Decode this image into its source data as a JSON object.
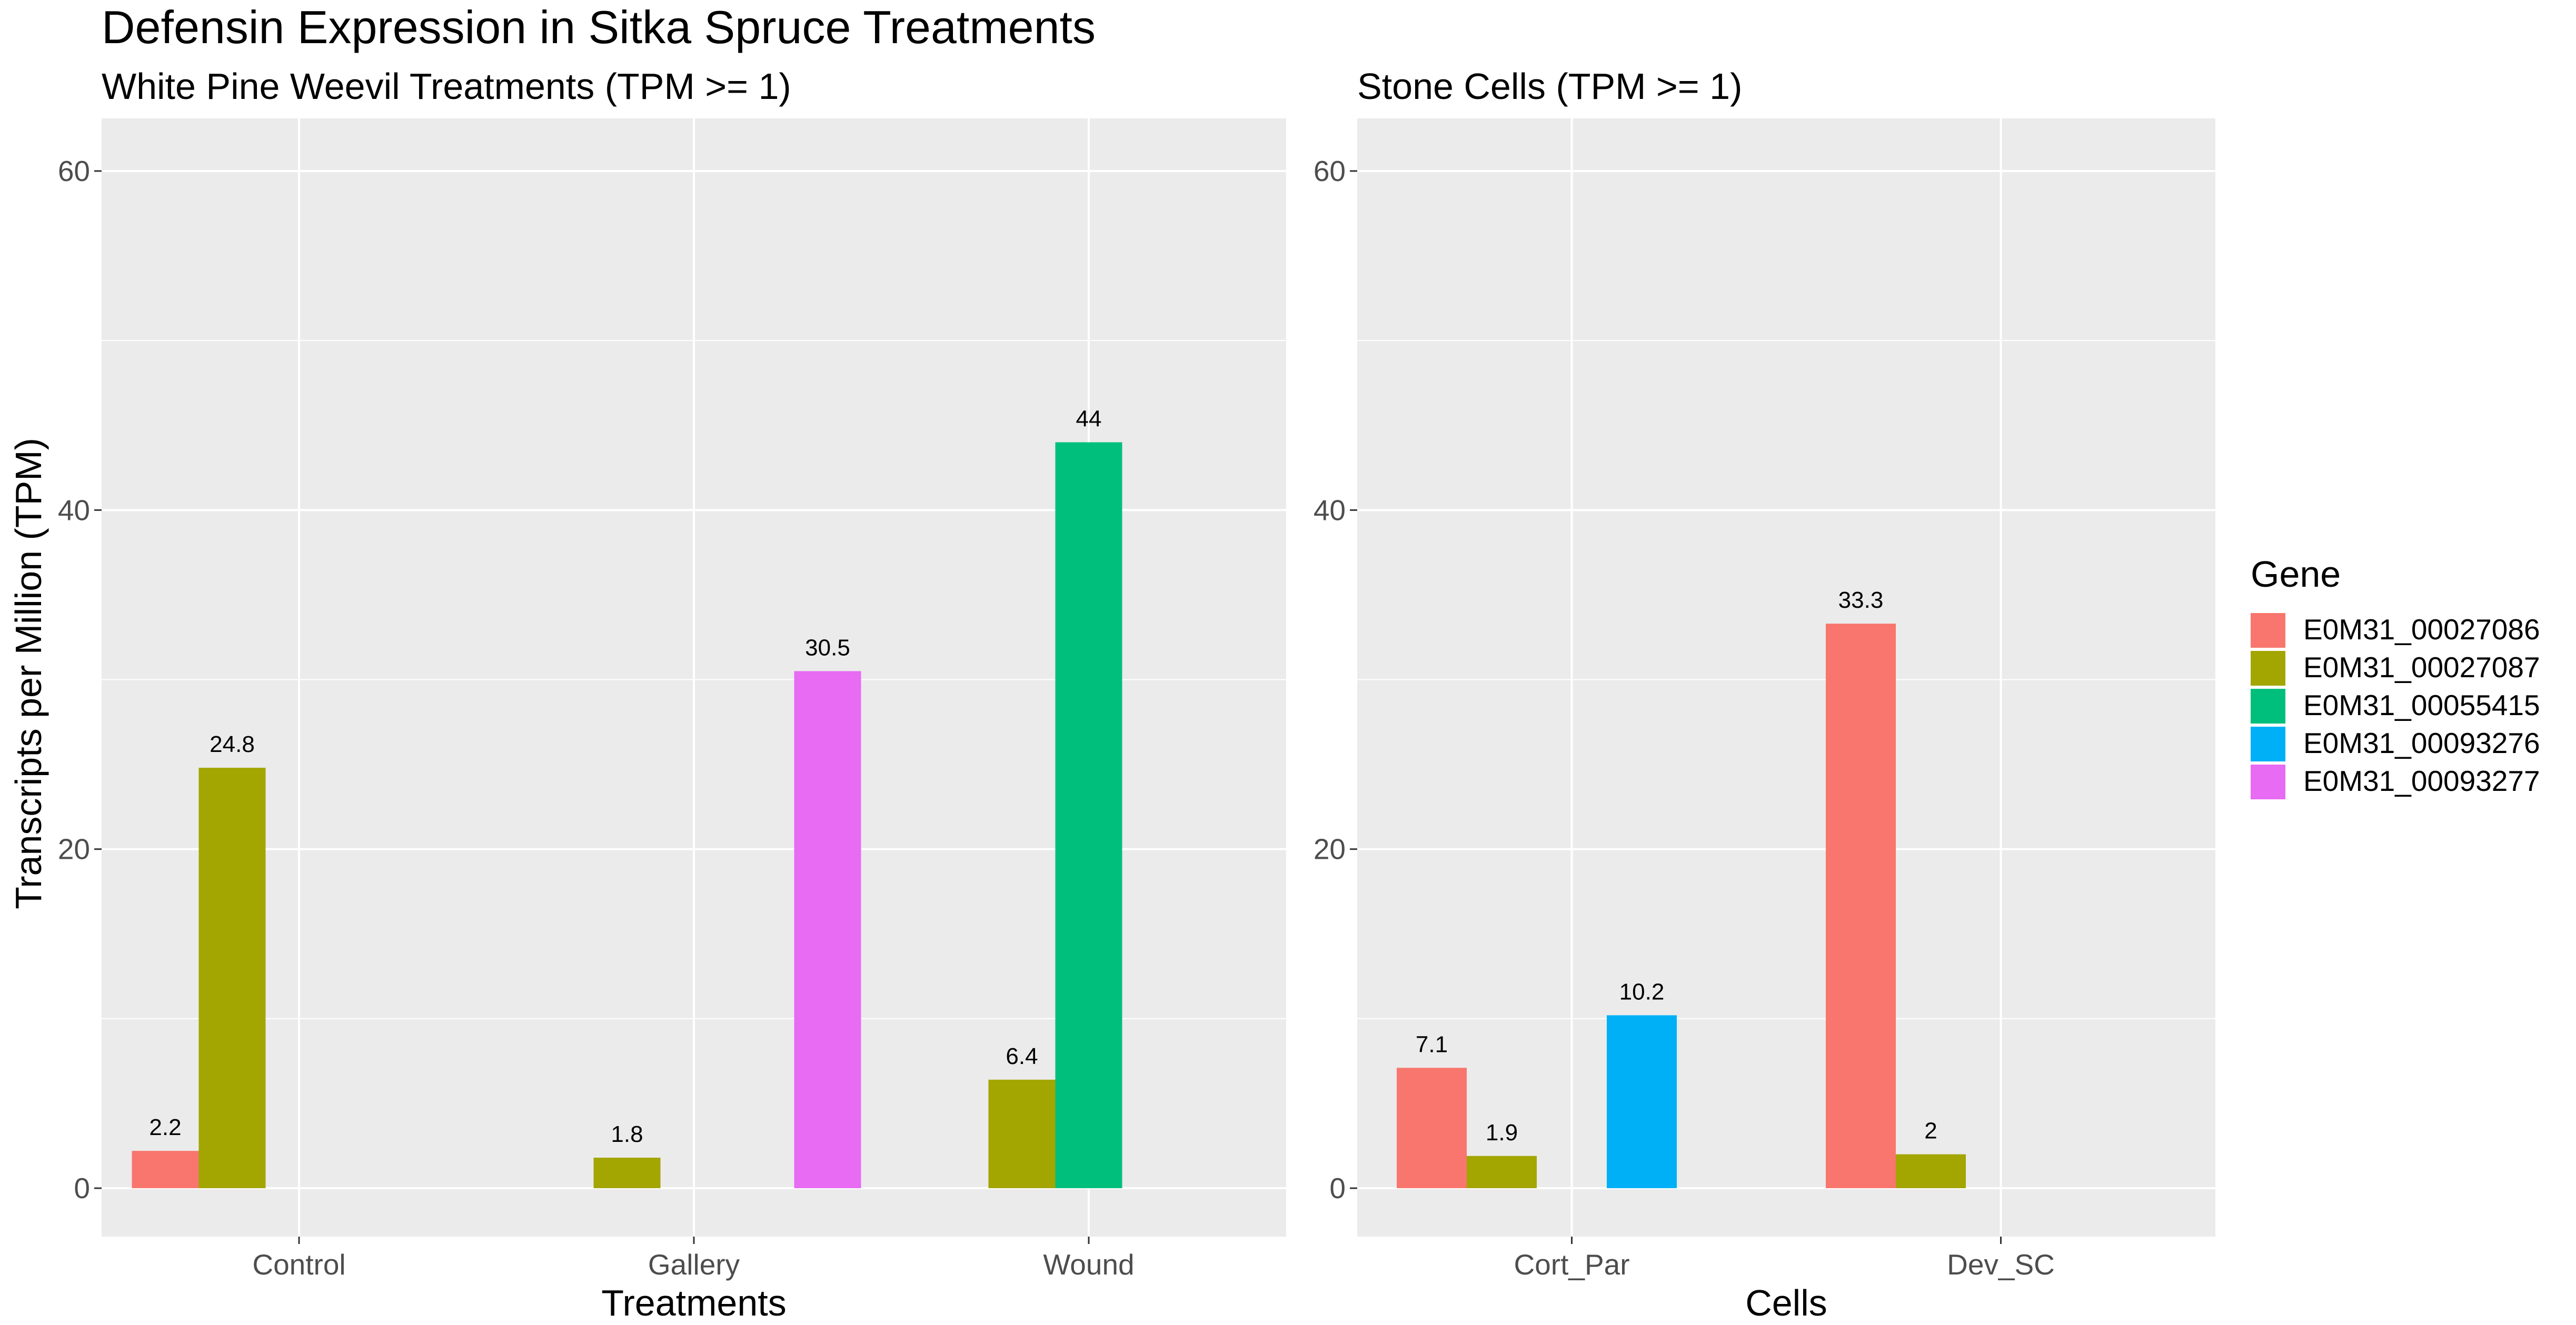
{
  "title": "Defensin Expression in Sitka Spruce Treatments",
  "ylabel": "Transcripts per Million (TPM)",
  "legend": {
    "title": "Gene",
    "placement": "right",
    "items": [
      {
        "name": "E0M31_00027086",
        "color": "#F8766D"
      },
      {
        "name": "E0M31_00027087",
        "color": "#A3A500"
      },
      {
        "name": "E0M31_00055415",
        "color": "#00BF7D"
      },
      {
        "name": "E0M31_00093276",
        "color": "#00B0F6"
      },
      {
        "name": "E0M31_00093277",
        "color": "#E76BF3"
      }
    ]
  },
  "chart_data": [
    {
      "type": "bar",
      "subtitle": "White Pine Weevil Treatments (TPM >= 1)",
      "xlabel": "Treatments",
      "ylabel": "Transcripts per Million (TPM)",
      "ylim": [
        0,
        60
      ],
      "yticks": [
        0,
        20,
        40,
        60
      ],
      "grid": true,
      "categories": [
        "Control",
        "Gallery",
        "Wound"
      ],
      "series": [
        {
          "name": "E0M31_00027086",
          "values": [
            2.2,
            null,
            null
          ]
        },
        {
          "name": "E0M31_00027087",
          "values": [
            24.8,
            1.8,
            6.4
          ]
        },
        {
          "name": "E0M31_00055415",
          "values": [
            null,
            null,
            44
          ]
        },
        {
          "name": "E0M31_00093276",
          "values": [
            null,
            null,
            null
          ]
        },
        {
          "name": "E0M31_00093277",
          "values": [
            null,
            30.5,
            null
          ]
        }
      ],
      "data_labels": [
        "2.2",
        "24.8",
        "1.8",
        "30.5",
        "6.4",
        "44"
      ]
    },
    {
      "type": "bar",
      "subtitle": "Stone Cells (TPM >= 1)",
      "xlabel": "Cells",
      "ylim": [
        0,
        60
      ],
      "yticks": [
        0,
        20,
        40,
        60
      ],
      "grid": true,
      "categories": [
        "Cort_Par",
        "Dev_SC"
      ],
      "series": [
        {
          "name": "E0M31_00027086",
          "values": [
            7.1,
            33.3
          ]
        },
        {
          "name": "E0M31_00027087",
          "values": [
            1.9,
            2
          ]
        },
        {
          "name": "E0M31_00055415",
          "values": [
            null,
            null
          ]
        },
        {
          "name": "E0M31_00093276",
          "values": [
            10.2,
            null
          ]
        },
        {
          "name": "E0M31_00093277",
          "values": [
            null,
            null
          ]
        }
      ],
      "data_labels": [
        "7.1",
        "1.9",
        "10.2",
        "33.3",
        "2"
      ]
    }
  ]
}
